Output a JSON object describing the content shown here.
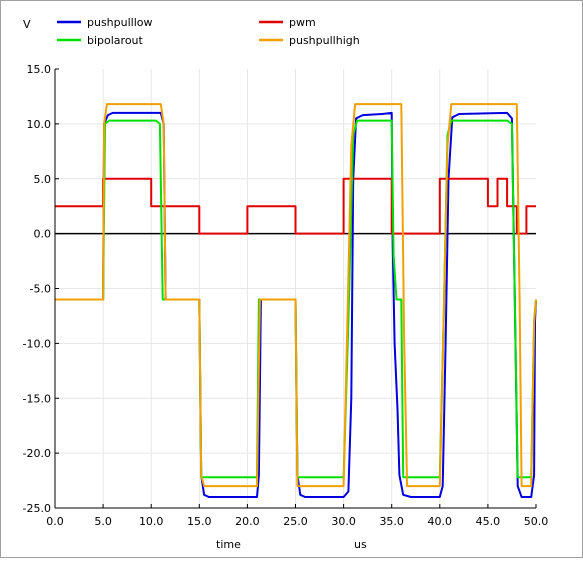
{
  "chart_data": {
    "type": "line",
    "ylabel": "V",
    "xlabel_left": "time",
    "xlabel_right": "us",
    "xlim": [
      0,
      50
    ],
    "ylim": [
      -25,
      15
    ],
    "xticks": [
      "0.0",
      "5.0",
      "10.0",
      "15.0",
      "20.0",
      "25.0",
      "30.0",
      "35.0",
      "40.0",
      "45.0",
      "50.0"
    ],
    "yticks": [
      "15.0",
      "10.0",
      "5.0",
      "0.0",
      "-5.0",
      "-10.0",
      "-15.0",
      "-20.0",
      "-25.0"
    ],
    "grid": true,
    "legend_position": "top",
    "series": [
      {
        "name": "pushpulllow",
        "color": "#0000e0",
        "points": [
          [
            0,
            -6
          ],
          [
            5,
            -6
          ],
          [
            5.1,
            10
          ],
          [
            5.5,
            10.8
          ],
          [
            6,
            11
          ],
          [
            8,
            11
          ],
          [
            11,
            11
          ],
          [
            11.3,
            10
          ],
          [
            11.5,
            -6
          ],
          [
            15,
            -6
          ],
          [
            15.2,
            -22
          ],
          [
            15.5,
            -23.8
          ],
          [
            16,
            -24
          ],
          [
            20,
            -24
          ],
          [
            21,
            -24
          ],
          [
            21.2,
            -22
          ],
          [
            21.4,
            -6
          ],
          [
            25,
            -6
          ],
          [
            25.2,
            -22
          ],
          [
            25.5,
            -23.8
          ],
          [
            26,
            -24
          ],
          [
            30,
            -24
          ],
          [
            30.5,
            -23.5
          ],
          [
            30.8,
            -15
          ],
          [
            31,
            5
          ],
          [
            31.3,
            10.5
          ],
          [
            32,
            10.8
          ],
          [
            34,
            10.9
          ],
          [
            35,
            11
          ],
          [
            35.1,
            -1
          ],
          [
            35.3,
            -10
          ],
          [
            35.6,
            -16
          ],
          [
            35.8,
            -22
          ],
          [
            36.2,
            -23.8
          ],
          [
            37,
            -24
          ],
          [
            40,
            -24
          ],
          [
            40.3,
            -23
          ],
          [
            40.6,
            -10
          ],
          [
            40.9,
            5
          ],
          [
            41.3,
            10.6
          ],
          [
            42,
            10.9
          ],
          [
            47,
            11
          ],
          [
            47.5,
            10.5
          ],
          [
            47.8,
            -6
          ],
          [
            48.1,
            -23
          ],
          [
            48.5,
            -24
          ],
          [
            49.5,
            -24
          ],
          [
            49.8,
            -22
          ],
          [
            49.9,
            -8
          ],
          [
            50,
            -6
          ]
        ]
      },
      {
        "name": "pwm",
        "color": "#e00000",
        "points": [
          [
            0,
            2.5
          ],
          [
            5,
            2.5
          ],
          [
            5,
            5
          ],
          [
            10,
            5
          ],
          [
            10,
            2.5
          ],
          [
            15,
            2.5
          ],
          [
            15,
            0
          ],
          [
            20,
            0
          ],
          [
            20,
            2.5
          ],
          [
            25,
            2.5
          ],
          [
            25,
            0
          ],
          [
            30,
            0
          ],
          [
            30,
            5
          ],
          [
            35,
            5
          ],
          [
            35,
            0
          ],
          [
            40,
            0
          ],
          [
            40,
            5
          ],
          [
            45,
            5
          ],
          [
            45,
            2.5
          ],
          [
            46,
            2.5
          ],
          [
            46,
            5
          ],
          [
            47,
            5
          ],
          [
            47,
            2.5
          ],
          [
            48,
            2.5
          ],
          [
            48,
            0
          ],
          [
            49,
            0
          ],
          [
            49,
            2.5
          ],
          [
            50,
            2.5
          ]
        ]
      },
      {
        "name": "bipolarout",
        "color": "#00e000",
        "points": [
          [
            0,
            -6
          ],
          [
            5,
            -6
          ],
          [
            5.2,
            10
          ],
          [
            5.6,
            10.3
          ],
          [
            10.5,
            10.3
          ],
          [
            10.9,
            10
          ],
          [
            11.2,
            -6
          ],
          [
            15,
            -6
          ],
          [
            15.2,
            -22.2
          ],
          [
            21,
            -22.2
          ],
          [
            21.2,
            -6
          ],
          [
            25,
            -6
          ],
          [
            25.2,
            -22.2
          ],
          [
            30,
            -22.2
          ],
          [
            30.5,
            -8
          ],
          [
            31,
            9
          ],
          [
            31.4,
            10.3
          ],
          [
            35,
            10.3
          ],
          [
            35.2,
            -2
          ],
          [
            35.5,
            -6
          ],
          [
            36,
            -6
          ],
          [
            36.2,
            -22.2
          ],
          [
            40,
            -22.2
          ],
          [
            40.4,
            -8
          ],
          [
            40.8,
            9
          ],
          [
            41.2,
            10.3
          ],
          [
            47,
            10.3
          ],
          [
            47.5,
            10
          ],
          [
            47.8,
            -6
          ],
          [
            48.1,
            -22.2
          ],
          [
            49.5,
            -22.2
          ],
          [
            49.8,
            -8
          ],
          [
            50,
            -6
          ]
        ]
      },
      {
        "name": "pushpullhigh",
        "color": "#f0a000",
        "points": [
          [
            0,
            -6
          ],
          [
            5,
            -6
          ],
          [
            5.1,
            10
          ],
          [
            5.4,
            11.8
          ],
          [
            11,
            11.8
          ],
          [
            11.3,
            10
          ],
          [
            11.5,
            -6
          ],
          [
            15,
            -6
          ],
          [
            15.2,
            -22
          ],
          [
            15.5,
            -23
          ],
          [
            21,
            -23
          ],
          [
            21.3,
            -6
          ],
          [
            25,
            -6
          ],
          [
            25.2,
            -23
          ],
          [
            30,
            -23
          ],
          [
            30.4,
            -8
          ],
          [
            30.8,
            8
          ],
          [
            31.2,
            11.8
          ],
          [
            36,
            11.8
          ],
          [
            36.3,
            -10
          ],
          [
            36.6,
            -23
          ],
          [
            40,
            -23
          ],
          [
            40.4,
            -8
          ],
          [
            40.8,
            8
          ],
          [
            41.2,
            11.8
          ],
          [
            48,
            11.8
          ],
          [
            48.3,
            -6
          ],
          [
            48.5,
            -23
          ],
          [
            49.5,
            -23
          ],
          [
            49.8,
            -8
          ],
          [
            50,
            -6
          ]
        ]
      }
    ]
  }
}
